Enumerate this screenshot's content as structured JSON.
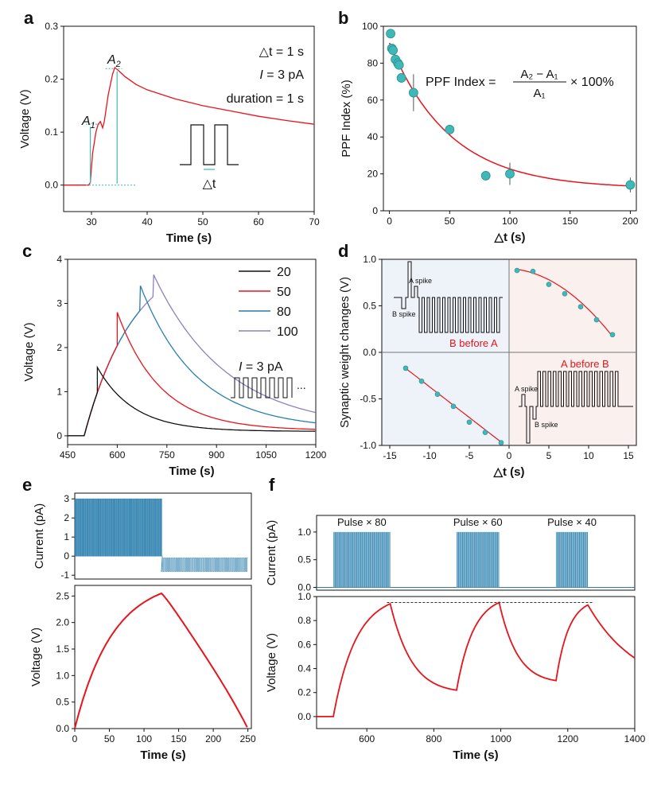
{
  "colors": {
    "red": "#e8141c",
    "teal": "#2a7fae",
    "cyan": "#3fb8b8",
    "black": "#111111",
    "purple": "#8f7fc4",
    "grey_bg": "#808080"
  },
  "chart_data": [
    {
      "id": "a",
      "panel_label": "a",
      "type": "line",
      "xlabel": "Time (s)",
      "ylabel": "Voltage (V)",
      "xlim": [
        25,
        70
      ],
      "ylim": [
        -0.05,
        0.3
      ],
      "xticks": [
        "30",
        "40",
        "50",
        "60",
        "70"
      ],
      "yticks": [
        "0.0",
        "0.1",
        "0.2",
        "0.3"
      ],
      "annotations": {
        "dt": "△t = 1 s",
        "current": "= 3 pA",
        "current_symbol": "I",
        "duration": "duration = 1 s",
        "A1": "A",
        "A1_sub": "1",
        "A2": "A",
        "A2_sub": "2",
        "pulse_dt": "△t"
      },
      "series": [
        {
          "name": "voltage",
          "color": "red",
          "points": [
            [
              25,
              0
            ],
            [
              29.5,
              0
            ],
            [
              29.8,
              0.005
            ],
            [
              30.2,
              0.06
            ],
            [
              30.8,
              0.1
            ],
            [
              31.2,
              0.115
            ],
            [
              31.6,
              0.12
            ],
            [
              32,
              0.108
            ],
            [
              32.3,
              0.12
            ],
            [
              33,
              0.17
            ],
            [
              33.8,
              0.21
            ],
            [
              34.2,
              0.222
            ],
            [
              35,
              0.215
            ],
            [
              36,
              0.205
            ],
            [
              38,
              0.19
            ],
            [
              40,
              0.18
            ],
            [
              45,
              0.163
            ],
            [
              50,
              0.15
            ],
            [
              55,
              0.14
            ],
            [
              60,
              0.13
            ],
            [
              65,
              0.122
            ],
            [
              70,
              0.115
            ]
          ]
        }
      ],
      "levels": {
        "A1": 0.115,
        "A2": 0.22,
        "base": 0
      }
    },
    {
      "id": "b",
      "panel_label": "b",
      "type": "scatter",
      "xlabel": "△t (s)",
      "ylabel": "PPF Index (%)",
      "xlim": [
        -5,
        205
      ],
      "ylim": [
        0,
        100
      ],
      "xticks": [
        "0",
        "50",
        "100",
        "150",
        "200"
      ],
      "yticks": [
        "0",
        "20",
        "40",
        "60",
        "80",
        "100"
      ],
      "formula": {
        "lhs": "PPF Index =",
        "num": "A₂ − A₁",
        "den": "A₁",
        "rhs": "× 100%"
      },
      "points": [
        {
          "x": 1,
          "y": 96
        },
        {
          "x": 2,
          "y": 88
        },
        {
          "x": 3,
          "y": 87
        },
        {
          "x": 5,
          "y": 82
        },
        {
          "x": 7,
          "y": 80
        },
        {
          "x": 8,
          "y": 79
        },
        {
          "x": 10,
          "y": 72
        },
        {
          "x": 20,
          "y": 64,
          "err": 10
        },
        {
          "x": 50,
          "y": 44
        },
        {
          "x": 80,
          "y": 19
        },
        {
          "x": 100,
          "y": 20,
          "err": 6
        },
        {
          "x": 200,
          "y": 14,
          "err": 4
        }
      ],
      "fit": {
        "form": "12+79*exp(-x/50)"
      }
    },
    {
      "id": "c",
      "panel_label": "c",
      "type": "line",
      "xlabel": "Time (s)",
      "ylabel": "Voltage (V)",
      "xlim": [
        450,
        1200
      ],
      "ylim": [
        -0.2,
        4
      ],
      "xticks": [
        "450",
        "600",
        "750",
        "900",
        "1050",
        "1200"
      ],
      "yticks": [
        "0",
        "1",
        "2",
        "3",
        "4"
      ],
      "annotations": {
        "current_symbol": "I",
        "current": "= 3 pA",
        "ellipsis": "..."
      },
      "series": [
        {
          "name": "20",
          "color": "black",
          "peak_t": 540,
          "peak_v": 1.55,
          "decay": 110,
          "floor": 0.1
        },
        {
          "name": "50",
          "color": "red",
          "peak_t": 600,
          "peak_v": 2.8,
          "decay": 130,
          "floor": 0.12
        },
        {
          "name": "80",
          "color": "teal",
          "peak_t": 670,
          "peak_v": 3.4,
          "decay": 170,
          "floor": 0.15
        },
        {
          "name": "100",
          "color": "purple",
          "peak_t": 710,
          "peak_v": 3.65,
          "decay": 220,
          "floor": 0.15
        }
      ]
    },
    {
      "id": "d",
      "panel_label": "d",
      "type": "scatter",
      "xlabel": "△t (s)",
      "ylabel": "Synaptic weight changes (V)",
      "xlim": [
        -16,
        16
      ],
      "ylim": [
        -1,
        1
      ],
      "xticks": [
        "-15",
        "-10",
        "-5",
        "0",
        "5",
        "10",
        "15"
      ],
      "yticks": [
        "-1.0",
        "-0.5",
        "0.0",
        "0.5",
        "1.0"
      ],
      "annotations": {
        "b_before_a": "B before A",
        "a_before_b": "A before B",
        "a_spike": "A spike",
        "b_spike": "B spike"
      },
      "points_pos": [
        [
          1,
          0.88
        ],
        [
          3,
          0.87
        ],
        [
          5,
          0.73
        ],
        [
          7,
          0.63
        ],
        [
          9,
          0.49
        ],
        [
          11,
          0.35
        ],
        [
          13,
          0.19
        ]
      ],
      "points_neg": [
        [
          -13,
          -0.17
        ],
        [
          -11,
          -0.31
        ],
        [
          -9,
          -0.45
        ],
        [
          -7,
          -0.58
        ],
        [
          -5,
          -0.75
        ],
        [
          -3,
          -0.86
        ],
        [
          -1,
          -0.97
        ]
      ]
    },
    {
      "id": "e",
      "panel_label": "e",
      "type": "line",
      "top": {
        "ylabel": "Current (pA)",
        "yticks": [
          "-1",
          "0",
          "1",
          "2",
          "3"
        ],
        "ylim": [
          -1.2,
          3.3
        ],
        "high": 3,
        "low": -0.8,
        "switch_t": 125
      },
      "xlabel": "Time (s)",
      "ylabel": "Voltage (V)",
      "xlim": [
        0,
        255
      ],
      "ylim": [
        0,
        2.7
      ],
      "xticks": [
        "0",
        "50",
        "100",
        "150",
        "200",
        "250"
      ],
      "yticks": [
        "0.0",
        "0.5",
        "1.0",
        "1.5",
        "2.0",
        "2.5"
      ],
      "series": [
        {
          "name": "voltage",
          "color": "red",
          "peak_t": 125,
          "peak_v": 2.55,
          "end_t": 250
        }
      ]
    },
    {
      "id": "f",
      "panel_label": "f",
      "type": "line",
      "top": {
        "ylabel": "Current (pA)",
        "yticks": [
          "0.0",
          "0.5",
          "1.0"
        ],
        "ylim": [
          -0.05,
          1.3
        ],
        "bursts": [
          {
            "label": "Pulse × 80",
            "start": 500,
            "end": 670
          },
          {
            "label": "Pulse × 60",
            "start": 868,
            "end": 995
          },
          {
            "label": "Pulse × 40",
            "start": 1165,
            "end": 1260
          }
        ]
      },
      "xlabel": "Time (s)",
      "ylabel": "Voltage (V)",
      "xlim": [
        450,
        1400
      ],
      "ylim": [
        -0.1,
        1.0
      ],
      "xticks": [
        "600",
        "800",
        "1000",
        "1200",
        "1400"
      ],
      "yticks": [
        "0.0",
        "0.2",
        "0.4",
        "0.6",
        "0.8",
        "1.0"
      ],
      "segments": [
        {
          "start": 500,
          "end": 670,
          "v0": 0,
          "peak": 0.94
        },
        {
          "start": 868,
          "end": 995,
          "v0": 0.22,
          "peak": 0.95
        },
        {
          "start": 1165,
          "end": 1260,
          "v0": 0.3,
          "peak": 0.93
        }
      ],
      "ref_line": 0.95,
      "series": [
        {
          "name": "voltage",
          "color": "red"
        }
      ]
    }
  ]
}
